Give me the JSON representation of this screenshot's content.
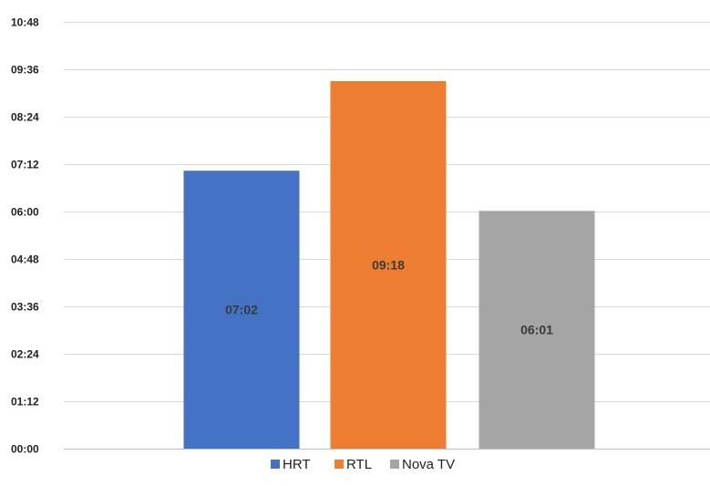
{
  "chart_data": {
    "type": "bar",
    "title": "",
    "xlabel": "",
    "ylabel": "",
    "grid": true,
    "legend_position": "bottom",
    "y_unit": "minutes",
    "ylim": [
      0,
      648
    ],
    "y_ticks": [
      {
        "value": 0,
        "label": "00:00"
      },
      {
        "value": 72,
        "label": "01:12"
      },
      {
        "value": 144,
        "label": "02:24"
      },
      {
        "value": 216,
        "label": "03:36"
      },
      {
        "value": 288,
        "label": "04:48"
      },
      {
        "value": 360,
        "label": "06:00"
      },
      {
        "value": 432,
        "label": "07:12"
      },
      {
        "value": 504,
        "label": "08:24"
      },
      {
        "value": 576,
        "label": "09:36"
      },
      {
        "value": 648,
        "label": "10:48"
      }
    ],
    "series": [
      {
        "name": "HRT",
        "value": 422,
        "label": "07:02",
        "color": "#4472c4"
      },
      {
        "name": "RTL",
        "value": 558,
        "label": "09:18",
        "color": "#ed7d31"
      },
      {
        "name": "Nova TV",
        "value": 361,
        "label": "06:01",
        "color": "#a5a5a5"
      }
    ]
  }
}
